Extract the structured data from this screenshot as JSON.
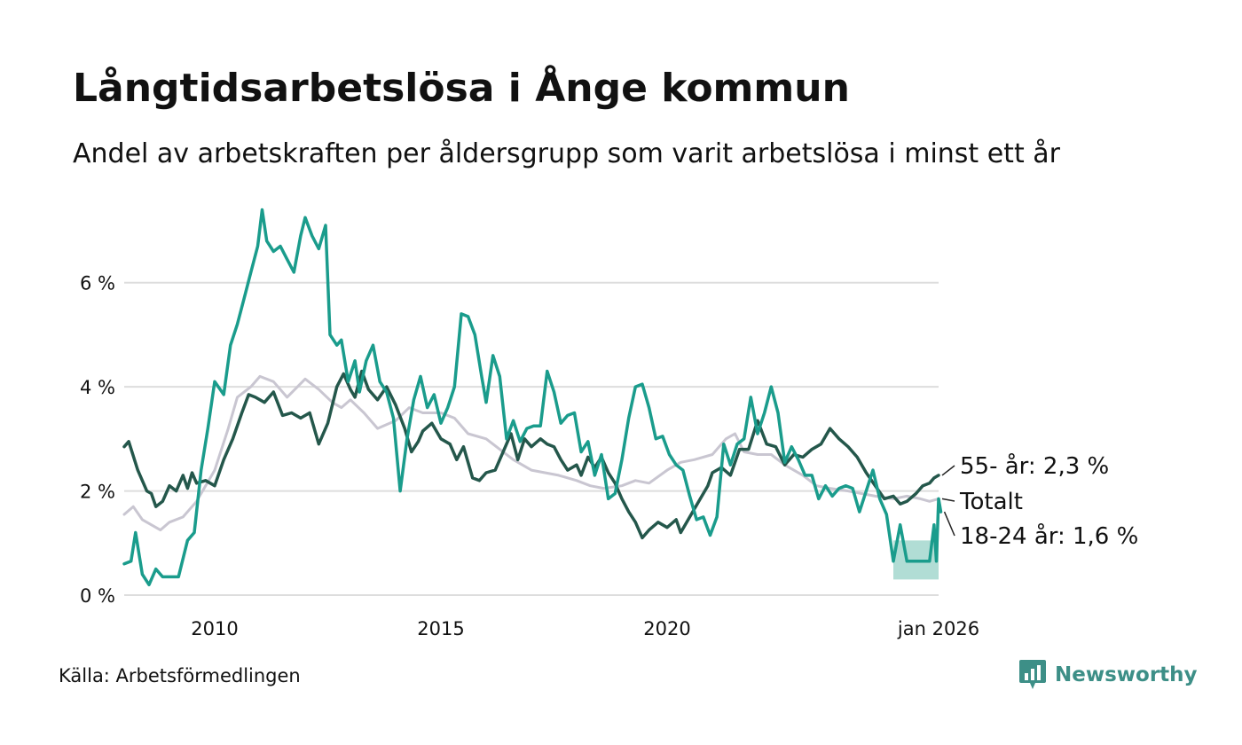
{
  "title": "Långtidsarbetslösa i Ånge kommun",
  "subtitle": "Andel av arbetskraften per åldersgrupp som varit arbetslösa i minst ett år",
  "source": "Källa: Arbetsförmedlingen",
  "brand": "Newsworthy",
  "colors": {
    "youth": "#1a9c8c",
    "senior": "#24574b",
    "total": "#c9c6d1",
    "uncertainty": "#a9d9d0",
    "grid": "#dddddd",
    "brand": "#3d8f87"
  },
  "chart_data": {
    "type": "line",
    "title": "Långtidsarbetslösa i Ånge kommun",
    "x_range": [
      2008.0,
      2026.0
    ],
    "ylim": [
      0,
      7.8
    ],
    "ylabel": "",
    "xlabel": "",
    "y_ticks": [
      {
        "value": 0,
        "label": "0 %"
      },
      {
        "value": 2,
        "label": "2 %"
      },
      {
        "value": 4,
        "label": "4 %"
      },
      {
        "value": 6,
        "label": "6 %"
      }
    ],
    "x_ticks": [
      {
        "value": 2010.0,
        "label": "2010"
      },
      {
        "value": 2015.0,
        "label": "2015"
      },
      {
        "value": 2020.0,
        "label": "2020"
      },
      {
        "value": 2026.0,
        "label": "jan 2026"
      }
    ],
    "series": [
      {
        "name": "Totalt",
        "label": "Totalt",
        "color_key": "total",
        "points": [
          [
            2008.0,
            1.55
          ],
          [
            2008.2,
            1.7
          ],
          [
            2008.4,
            1.45
          ],
          [
            2008.8,
            1.25
          ],
          [
            2009.0,
            1.4
          ],
          [
            2009.3,
            1.5
          ],
          [
            2009.6,
            1.8
          ],
          [
            2010.0,
            2.4
          ],
          [
            2010.3,
            3.2
          ],
          [
            2010.5,
            3.8
          ],
          [
            2010.8,
            4.0
          ],
          [
            2011.0,
            4.2
          ],
          [
            2011.3,
            4.1
          ],
          [
            2011.6,
            3.8
          ],
          [
            2012.0,
            4.15
          ],
          [
            2012.3,
            3.95
          ],
          [
            2012.6,
            3.7
          ],
          [
            2012.8,
            3.6
          ],
          [
            2013.0,
            3.75
          ],
          [
            2013.3,
            3.5
          ],
          [
            2013.6,
            3.2
          ],
          [
            2014.0,
            3.35
          ],
          [
            2014.3,
            3.6
          ],
          [
            2014.6,
            3.5
          ],
          [
            2015.0,
            3.5
          ],
          [
            2015.3,
            3.4
          ],
          [
            2015.6,
            3.1
          ],
          [
            2016.0,
            3.0
          ],
          [
            2016.3,
            2.8
          ],
          [
            2016.6,
            2.6
          ],
          [
            2017.0,
            2.4
          ],
          [
            2017.3,
            2.35
          ],
          [
            2017.6,
            2.3
          ],
          [
            2018.0,
            2.2
          ],
          [
            2018.3,
            2.1
          ],
          [
            2018.6,
            2.05
          ],
          [
            2019.0,
            2.1
          ],
          [
            2019.3,
            2.2
          ],
          [
            2019.6,
            2.15
          ],
          [
            2020.0,
            2.4
          ],
          [
            2020.3,
            2.55
          ],
          [
            2020.6,
            2.6
          ],
          [
            2021.0,
            2.7
          ],
          [
            2021.3,
            3.0
          ],
          [
            2021.5,
            3.1
          ],
          [
            2021.7,
            2.75
          ],
          [
            2022.0,
            2.7
          ],
          [
            2022.3,
            2.7
          ],
          [
            2022.6,
            2.5
          ],
          [
            2023.0,
            2.3
          ],
          [
            2023.3,
            2.1
          ],
          [
            2023.6,
            2.05
          ],
          [
            2024.0,
            2.0
          ],
          [
            2024.3,
            1.95
          ],
          [
            2024.6,
            1.9
          ],
          [
            2025.0,
            1.85
          ],
          [
            2025.3,
            1.9
          ],
          [
            2025.6,
            1.85
          ],
          [
            2025.8,
            1.8
          ],
          [
            2026.0,
            1.85
          ]
        ]
      },
      {
        "name": "55- år",
        "label": "55- år: 2,3 %",
        "color_key": "senior",
        "points": [
          [
            2008.0,
            2.85
          ],
          [
            2008.1,
            2.95
          ],
          [
            2008.3,
            2.4
          ],
          [
            2008.5,
            2.0
          ],
          [
            2008.6,
            1.95
          ],
          [
            2008.7,
            1.7
          ],
          [
            2008.85,
            1.8
          ],
          [
            2009.0,
            2.1
          ],
          [
            2009.15,
            2.0
          ],
          [
            2009.3,
            2.3
          ],
          [
            2009.4,
            2.05
          ],
          [
            2009.5,
            2.35
          ],
          [
            2009.6,
            2.15
          ],
          [
            2009.8,
            2.2
          ],
          [
            2010.0,
            2.1
          ],
          [
            2010.2,
            2.6
          ],
          [
            2010.4,
            3.0
          ],
          [
            2010.6,
            3.5
          ],
          [
            2010.75,
            3.85
          ],
          [
            2010.9,
            3.8
          ],
          [
            2011.1,
            3.7
          ],
          [
            2011.3,
            3.9
          ],
          [
            2011.5,
            3.45
          ],
          [
            2011.7,
            3.5
          ],
          [
            2011.9,
            3.4
          ],
          [
            2012.1,
            3.5
          ],
          [
            2012.3,
            2.9
          ],
          [
            2012.5,
            3.3
          ],
          [
            2012.7,
            4.0
          ],
          [
            2012.85,
            4.25
          ],
          [
            2013.0,
            3.95
          ],
          [
            2013.1,
            3.8
          ],
          [
            2013.25,
            4.3
          ],
          [
            2013.4,
            3.95
          ],
          [
            2013.6,
            3.75
          ],
          [
            2013.8,
            4.0
          ],
          [
            2014.0,
            3.65
          ],
          [
            2014.2,
            3.2
          ],
          [
            2014.35,
            2.75
          ],
          [
            2014.5,
            2.95
          ],
          [
            2014.6,
            3.15
          ],
          [
            2014.8,
            3.3
          ],
          [
            2015.0,
            3.0
          ],
          [
            2015.2,
            2.9
          ],
          [
            2015.35,
            2.6
          ],
          [
            2015.5,
            2.85
          ],
          [
            2015.7,
            2.25
          ],
          [
            2015.85,
            2.2
          ],
          [
            2016.0,
            2.35
          ],
          [
            2016.2,
            2.4
          ],
          [
            2016.4,
            2.8
          ],
          [
            2016.55,
            3.1
          ],
          [
            2016.7,
            2.6
          ],
          [
            2016.85,
            3.0
          ],
          [
            2017.0,
            2.85
          ],
          [
            2017.2,
            3.0
          ],
          [
            2017.35,
            2.9
          ],
          [
            2017.5,
            2.85
          ],
          [
            2017.65,
            2.6
          ],
          [
            2017.8,
            2.4
          ],
          [
            2018.0,
            2.5
          ],
          [
            2018.1,
            2.3
          ],
          [
            2018.25,
            2.65
          ],
          [
            2018.4,
            2.45
          ],
          [
            2018.55,
            2.65
          ],
          [
            2018.7,
            2.35
          ],
          [
            2018.85,
            2.15
          ],
          [
            2019.0,
            1.85
          ],
          [
            2019.15,
            1.6
          ],
          [
            2019.3,
            1.4
          ],
          [
            2019.45,
            1.1
          ],
          [
            2019.6,
            1.25
          ],
          [
            2019.8,
            1.4
          ],
          [
            2020.0,
            1.3
          ],
          [
            2020.2,
            1.45
          ],
          [
            2020.3,
            1.2
          ],
          [
            2020.5,
            1.5
          ],
          [
            2020.7,
            1.8
          ],
          [
            2020.9,
            2.1
          ],
          [
            2021.0,
            2.35
          ],
          [
            2021.2,
            2.45
          ],
          [
            2021.4,
            2.3
          ],
          [
            2021.6,
            2.8
          ],
          [
            2021.8,
            2.8
          ],
          [
            2022.0,
            3.35
          ],
          [
            2022.2,
            2.9
          ],
          [
            2022.4,
            2.85
          ],
          [
            2022.6,
            2.5
          ],
          [
            2022.8,
            2.7
          ],
          [
            2023.0,
            2.65
          ],
          [
            2023.2,
            2.8
          ],
          [
            2023.4,
            2.9
          ],
          [
            2023.6,
            3.2
          ],
          [
            2023.8,
            3.0
          ],
          [
            2024.0,
            2.85
          ],
          [
            2024.2,
            2.65
          ],
          [
            2024.4,
            2.35
          ],
          [
            2024.6,
            2.1
          ],
          [
            2024.8,
            1.85
          ],
          [
            2025.0,
            1.9
          ],
          [
            2025.15,
            1.75
          ],
          [
            2025.3,
            1.8
          ],
          [
            2025.5,
            1.95
          ],
          [
            2025.65,
            2.1
          ],
          [
            2025.8,
            2.15
          ],
          [
            2025.9,
            2.25
          ],
          [
            2026.0,
            2.3
          ]
        ]
      },
      {
        "name": "18-24 år",
        "label": "18-24 år: 1,6 %",
        "color_key": "youth",
        "points": [
          [
            2008.0,
            0.6
          ],
          [
            2008.15,
            0.65
          ],
          [
            2008.25,
            1.2
          ],
          [
            2008.4,
            0.4
          ],
          [
            2008.55,
            0.2
          ],
          [
            2008.7,
            0.5
          ],
          [
            2008.85,
            0.35
          ],
          [
            2009.0,
            0.35
          ],
          [
            2009.2,
            0.35
          ],
          [
            2009.4,
            1.05
          ],
          [
            2009.55,
            1.2
          ],
          [
            2009.7,
            2.4
          ],
          [
            2009.85,
            3.2
          ],
          [
            2010.0,
            4.1
          ],
          [
            2010.2,
            3.85
          ],
          [
            2010.35,
            4.8
          ],
          [
            2010.5,
            5.2
          ],
          [
            2010.65,
            5.7
          ],
          [
            2010.8,
            6.2
          ],
          [
            2010.95,
            6.7
          ],
          [
            2011.05,
            7.4
          ],
          [
            2011.15,
            6.8
          ],
          [
            2011.3,
            6.6
          ],
          [
            2011.45,
            6.7
          ],
          [
            2011.6,
            6.45
          ],
          [
            2011.75,
            6.2
          ],
          [
            2011.9,
            6.9
          ],
          [
            2012.0,
            7.25
          ],
          [
            2012.15,
            6.9
          ],
          [
            2012.3,
            6.65
          ],
          [
            2012.45,
            7.1
          ],
          [
            2012.55,
            5.0
          ],
          [
            2012.7,
            4.8
          ],
          [
            2012.8,
            4.9
          ],
          [
            2012.95,
            4.1
          ],
          [
            2013.1,
            4.5
          ],
          [
            2013.2,
            3.9
          ],
          [
            2013.35,
            4.5
          ],
          [
            2013.5,
            4.8
          ],
          [
            2013.65,
            4.1
          ],
          [
            2013.8,
            3.9
          ],
          [
            2013.95,
            3.4
          ],
          [
            2014.1,
            2.0
          ],
          [
            2014.25,
            3.0
          ],
          [
            2014.4,
            3.75
          ],
          [
            2014.55,
            4.2
          ],
          [
            2014.7,
            3.6
          ],
          [
            2014.85,
            3.85
          ],
          [
            2015.0,
            3.3
          ],
          [
            2015.15,
            3.6
          ],
          [
            2015.3,
            4.0
          ],
          [
            2015.45,
            5.4
          ],
          [
            2015.6,
            5.35
          ],
          [
            2015.75,
            5.0
          ],
          [
            2015.9,
            4.2
          ],
          [
            2016.0,
            3.7
          ],
          [
            2016.15,
            4.6
          ],
          [
            2016.3,
            4.2
          ],
          [
            2016.45,
            3.0
          ],
          [
            2016.6,
            3.35
          ],
          [
            2016.75,
            2.95
          ],
          [
            2016.9,
            3.2
          ],
          [
            2017.05,
            3.25
          ],
          [
            2017.2,
            3.25
          ],
          [
            2017.35,
            4.3
          ],
          [
            2017.5,
            3.9
          ],
          [
            2017.65,
            3.3
          ],
          [
            2017.8,
            3.45
          ],
          [
            2017.95,
            3.5
          ],
          [
            2018.1,
            2.75
          ],
          [
            2018.25,
            2.95
          ],
          [
            2018.4,
            2.3
          ],
          [
            2018.55,
            2.7
          ],
          [
            2018.7,
            1.85
          ],
          [
            2018.85,
            1.95
          ],
          [
            2019.0,
            2.6
          ],
          [
            2019.15,
            3.4
          ],
          [
            2019.3,
            4.0
          ],
          [
            2019.45,
            4.05
          ],
          [
            2019.6,
            3.6
          ],
          [
            2019.75,
            3.0
          ],
          [
            2019.9,
            3.05
          ],
          [
            2020.05,
            2.7
          ],
          [
            2020.2,
            2.5
          ],
          [
            2020.35,
            2.4
          ],
          [
            2020.5,
            1.9
          ],
          [
            2020.65,
            1.45
          ],
          [
            2020.8,
            1.5
          ],
          [
            2020.95,
            1.15
          ],
          [
            2021.1,
            1.5
          ],
          [
            2021.25,
            2.9
          ],
          [
            2021.4,
            2.5
          ],
          [
            2021.55,
            2.9
          ],
          [
            2021.7,
            3.0
          ],
          [
            2021.85,
            3.8
          ],
          [
            2022.0,
            3.1
          ],
          [
            2022.15,
            3.5
          ],
          [
            2022.3,
            4.0
          ],
          [
            2022.45,
            3.5
          ],
          [
            2022.6,
            2.55
          ],
          [
            2022.75,
            2.85
          ],
          [
            2022.9,
            2.6
          ],
          [
            2023.05,
            2.3
          ],
          [
            2023.2,
            2.3
          ],
          [
            2023.35,
            1.85
          ],
          [
            2023.5,
            2.1
          ],
          [
            2023.65,
            1.9
          ],
          [
            2023.8,
            2.05
          ],
          [
            2023.95,
            2.1
          ],
          [
            2024.1,
            2.05
          ],
          [
            2024.25,
            1.6
          ],
          [
            2024.4,
            2.0
          ],
          [
            2024.55,
            2.4
          ],
          [
            2024.7,
            1.85
          ],
          [
            2024.85,
            1.55
          ],
          [
            2025.0,
            0.65
          ],
          [
            2025.15,
            1.35
          ],
          [
            2025.3,
            0.65
          ],
          [
            2025.5,
            0.65
          ],
          [
            2025.65,
            0.65
          ],
          [
            2025.8,
            0.65
          ],
          [
            2025.9,
            1.35
          ],
          [
            2025.95,
            0.65
          ],
          [
            2026.0,
            1.85
          ],
          [
            2026.05,
            1.6
          ]
        ]
      }
    ],
    "uncertainty_band": {
      "series": "18-24 år",
      "points": [
        [
          2025.0,
          0.3,
          1.05
        ],
        [
          2025.25,
          0.3,
          1.05
        ],
        [
          2025.5,
          0.3,
          1.05
        ],
        [
          2025.75,
          0.3,
          1.05
        ],
        [
          2026.0,
          0.3,
          1.05
        ]
      ]
    }
  }
}
